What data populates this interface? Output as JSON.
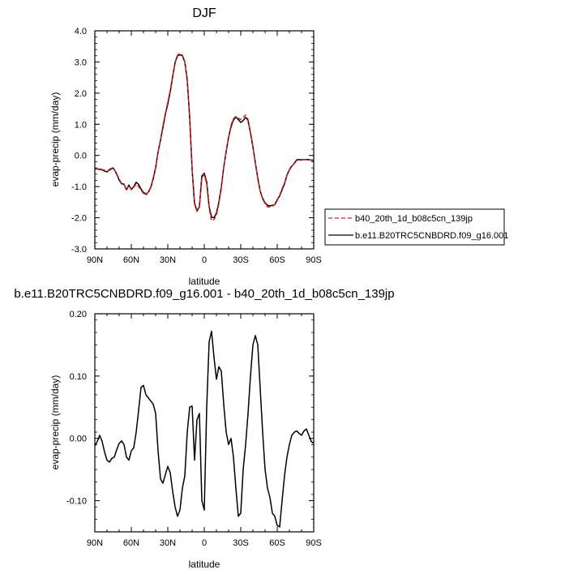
{
  "chart_data": [
    {
      "type": "line",
      "title": "DJF",
      "xlabel": "latitude",
      "ylabel": "evap-precip (mm/day)",
      "xlim": [
        90,
        -90
      ],
      "ylim": [
        -3.0,
        4.0
      ],
      "xticks": [
        90,
        60,
        30,
        0,
        -30,
        -60,
        -90
      ],
      "xtick_labels": [
        "90N",
        "60N",
        "30N",
        "0",
        "30S",
        "60S",
        "90S"
      ],
      "yticks": [
        -3,
        -2,
        -1,
        0,
        1,
        2,
        3,
        4
      ],
      "ytick_labels": [
        "-3.0",
        "-2.0",
        "-1.0",
        "0.0",
        "1.0",
        "2.0",
        "3.0",
        "4.0"
      ],
      "legend_position": "right",
      "series": [
        {
          "name": "b40_20th_1d_b08c5cn_139jp",
          "color": "#e8191b",
          "dash": "dashed",
          "x": [
            90,
            85,
            80,
            78,
            75,
            73,
            70,
            68,
            66,
            64,
            62,
            60,
            58,
            56,
            54,
            52,
            50,
            48,
            46,
            44,
            42,
            40,
            38,
            36,
            34,
            32,
            30,
            28,
            26,
            24,
            22,
            20,
            18,
            16,
            14,
            12,
            10,
            8,
            6,
            4,
            2,
            0,
            -2,
            -4,
            -6,
            -8,
            -10,
            -12,
            -14,
            -16,
            -18,
            -20,
            -22,
            -24,
            -26,
            -28,
            -30,
            -32,
            -34,
            -36,
            -38,
            -40,
            -42,
            -44,
            -46,
            -48,
            -50,
            -52,
            -54,
            -56,
            -58,
            -60,
            -62,
            -64,
            -66,
            -68,
            -70,
            -72,
            -74,
            -76,
            -78,
            -80,
            -85,
            -90
          ],
          "y": [
            -0.42,
            -0.44,
            -0.5,
            -0.48,
            -0.42,
            -0.52,
            -0.75,
            -0.9,
            -0.93,
            -1.12,
            -0.97,
            -1.1,
            -1.02,
            -0.92,
            -1.0,
            -1.12,
            -1.22,
            -1.28,
            -1.17,
            -1.01,
            -0.72,
            -0.38,
            0.1,
            0.52,
            0.96,
            1.35,
            1.72,
            2.1,
            2.55,
            3.0,
            3.22,
            3.28,
            3.22,
            3.02,
            2.45,
            1.3,
            -0.4,
            -1.5,
            -1.8,
            -1.62,
            -0.75,
            -0.6,
            -0.92,
            -1.7,
            -2.1,
            -2.06,
            -1.92,
            -1.55,
            -1.05,
            -0.4,
            0.15,
            0.6,
            0.98,
            1.18,
            1.25,
            1.2,
            1.15,
            1.22,
            1.3,
            1.15,
            0.75,
            0.3,
            -0.25,
            -0.75,
            -1.15,
            -1.4,
            -1.55,
            -1.65,
            -1.66,
            -1.63,
            -1.58,
            -1.45,
            -1.28,
            -1.06,
            -0.88,
            -0.62,
            -0.47,
            -0.35,
            -0.25,
            -0.16,
            -0.15,
            -0.13,
            -0.14,
            -0.17
          ]
        },
        {
          "name": "b.e11.B20TRC5CNBDRD.f09_g16.001",
          "color": "#000000",
          "dash": "solid",
          "x": [
            90,
            85,
            80,
            78,
            75,
            73,
            70,
            68,
            66,
            64,
            62,
            60,
            58,
            56,
            54,
            52,
            50,
            48,
            46,
            44,
            42,
            40,
            38,
            36,
            34,
            32,
            30,
            28,
            26,
            24,
            22,
            20,
            18,
            16,
            14,
            12,
            10,
            8,
            6,
            4,
            2,
            0,
            -2,
            -4,
            -6,
            -8,
            -10,
            -12,
            -14,
            -16,
            -18,
            -20,
            -22,
            -24,
            -26,
            -28,
            -30,
            -32,
            -34,
            -36,
            -38,
            -40,
            -42,
            -44,
            -46,
            -48,
            -50,
            -52,
            -54,
            -56,
            -58,
            -60,
            -62,
            -64,
            -66,
            -68,
            -70,
            -72,
            -74,
            -76,
            -78,
            -80,
            -85,
            -90
          ],
          "y": [
            -0.43,
            -0.45,
            -0.53,
            -0.45,
            -0.4,
            -0.52,
            -0.79,
            -0.91,
            -0.92,
            -1.1,
            -0.95,
            -1.09,
            -1.0,
            -0.86,
            -0.93,
            -1.08,
            -1.19,
            -1.24,
            -1.18,
            -1.03,
            -0.75,
            -0.4,
            0.12,
            0.48,
            0.9,
            1.32,
            1.65,
            2.05,
            2.52,
            2.98,
            3.2,
            3.23,
            3.2,
            3.0,
            2.42,
            1.2,
            -0.45,
            -1.55,
            -1.78,
            -1.65,
            -0.66,
            -0.57,
            -0.85,
            -1.65,
            -1.98,
            -2.0,
            -1.85,
            -1.5,
            -1.02,
            -0.38,
            0.12,
            0.58,
            0.92,
            1.14,
            1.23,
            1.15,
            1.06,
            1.12,
            1.22,
            1.12,
            0.72,
            0.28,
            -0.24,
            -0.72,
            -1.15,
            -1.38,
            -1.52,
            -1.6,
            -1.62,
            -1.6,
            -1.58,
            -1.42,
            -1.3,
            -1.1,
            -0.91,
            -0.64,
            -0.45,
            -0.34,
            -0.26,
            -0.14,
            -0.13,
            -0.14,
            -0.13,
            -0.16
          ]
        }
      ]
    },
    {
      "type": "line",
      "title": "b.e11.B20TRC5CNBDRD.f09_g16.001 - b40_20th_1d_b08c5cn_139jp",
      "xlabel": "latitude",
      "ylabel": "evap-precip (mm/day)",
      "xlim": [
        90,
        -90
      ],
      "ylim": [
        -0.15,
        0.2
      ],
      "xticks": [
        90,
        60,
        30,
        0,
        -30,
        -60,
        -90
      ],
      "xtick_labels": [
        "90N",
        "60N",
        "30N",
        "0",
        "30S",
        "60S",
        "90S"
      ],
      "yticks": [
        -0.1,
        0.0,
        0.1,
        0.2
      ],
      "ytick_labels": [
        "-0.10",
        "0.00",
        "0.10",
        "0.20"
      ],
      "series": [
        {
          "color": "#000000",
          "dash": "solid",
          "x": [
            90,
            88,
            86,
            84,
            82,
            80,
            78,
            76,
            74,
            72,
            70,
            68,
            66,
            64,
            62,
            60,
            58,
            56,
            54,
            52,
            50,
            48,
            46,
            44,
            42,
            40,
            38,
            36,
            34,
            32,
            30,
            28,
            26,
            24,
            22,
            20,
            18,
            16,
            14,
            12,
            10,
            8,
            6,
            4,
            2,
            0,
            -2,
            -4,
            -6,
            -8,
            -10,
            -12,
            -14,
            -16,
            -18,
            -20,
            -22,
            -24,
            -26,
            -28,
            -30,
            -32,
            -34,
            -36,
            -38,
            -40,
            -42,
            -44,
            -46,
            -48,
            -50,
            -52,
            -54,
            -56,
            -58,
            -60,
            -62,
            -64,
            -66,
            -68,
            -70,
            -72,
            -74,
            -76,
            -78,
            -80,
            -82,
            -84,
            -86,
            -88,
            -90
          ],
          "y": [
            -0.012,
            -0.005,
            0.005,
            -0.005,
            -0.022,
            -0.035,
            -0.038,
            -0.032,
            -0.03,
            -0.018,
            -0.008,
            -0.004,
            -0.01,
            -0.03,
            -0.035,
            -0.02,
            -0.015,
            0.01,
            0.045,
            0.082,
            0.085,
            0.07,
            0.065,
            0.06,
            0.055,
            0.04,
            -0.02,
            -0.065,
            -0.072,
            -0.058,
            -0.045,
            -0.055,
            -0.085,
            -0.11,
            -0.125,
            -0.115,
            -0.08,
            -0.06,
            0.01,
            0.05,
            0.052,
            -0.035,
            0.03,
            0.04,
            -0.1,
            -0.115,
            0.05,
            0.155,
            0.172,
            0.13,
            0.095,
            0.115,
            0.108,
            0.055,
            0.01,
            -0.01,
            0.0,
            -0.03,
            -0.08,
            -0.125,
            -0.12,
            -0.05,
            -0.01,
            0.04,
            0.1,
            0.15,
            0.165,
            0.15,
            0.08,
            0.01,
            -0.05,
            -0.08,
            -0.095,
            -0.12,
            -0.125,
            -0.14,
            -0.142,
            -0.1,
            -0.06,
            -0.03,
            -0.01,
            0.005,
            0.01,
            0.012,
            0.008,
            0.005,
            0.012,
            0.015,
            0.005,
            -0.005,
            -0.008
          ]
        }
      ]
    }
  ]
}
